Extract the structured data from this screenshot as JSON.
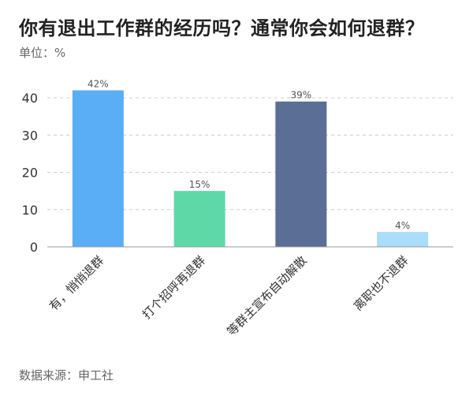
{
  "title": "你有退出工作群的经历吗？通常你会如何退群？",
  "subtitle": "单位：%",
  "source": "数据来源：申工社",
  "chart_data": {
    "type": "bar",
    "title": "你有退出工作群的经历吗？通常你会如何退群？",
    "unit": "%",
    "categories": [
      "有，悄悄退群",
      "打个招呼再退群",
      "等群主宣布自动解散",
      "离职也不退群"
    ],
    "values": [
      42,
      15,
      39,
      4
    ],
    "data_labels": [
      "42%",
      "15%",
      "39%",
      "4%"
    ],
    "colors": [
      "#5AAEF5",
      "#5FD8A8",
      "#5A6E96",
      "#A9DDF9"
    ],
    "yticks": [
      0,
      10,
      20,
      30,
      40
    ],
    "ylim": [
      0,
      45
    ],
    "grid": true
  }
}
